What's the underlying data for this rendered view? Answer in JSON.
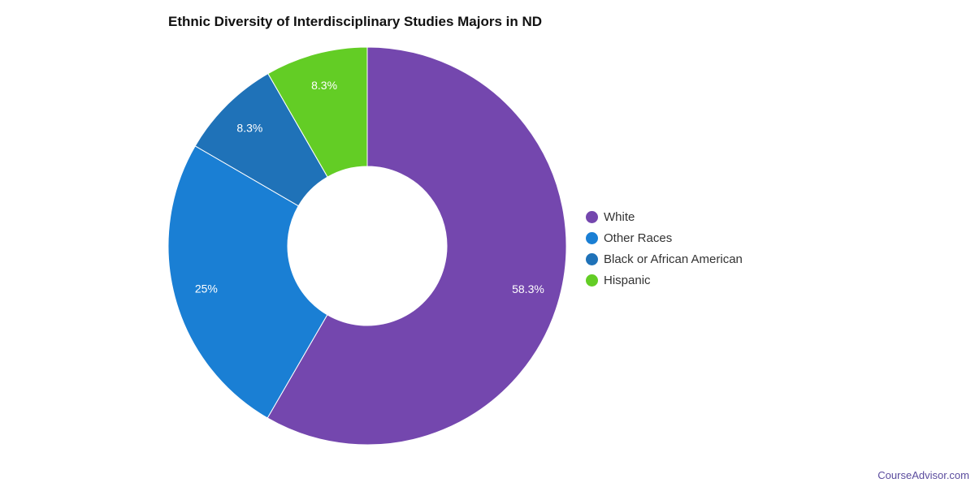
{
  "chart_data": {
    "type": "pie",
    "title": "Ethnic Diversity of Interdisciplinary Studies Majors in ND",
    "donut": true,
    "legend_position": "right",
    "slices": [
      {
        "label": "White",
        "value": 58.3,
        "display": "58.3%",
        "color": "#7447ae"
      },
      {
        "label": "Other Races",
        "value": 25,
        "display": "25%",
        "color": "#1a7fd4"
      },
      {
        "label": "Black or African American",
        "value": 8.3,
        "display": "8.3%",
        "color": "#1f72b8"
      },
      {
        "label": "Hispanic",
        "value": 8.3,
        "display": "8.3%",
        "color": "#63cd25"
      }
    ]
  },
  "credit": "CourseAdvisor.com"
}
